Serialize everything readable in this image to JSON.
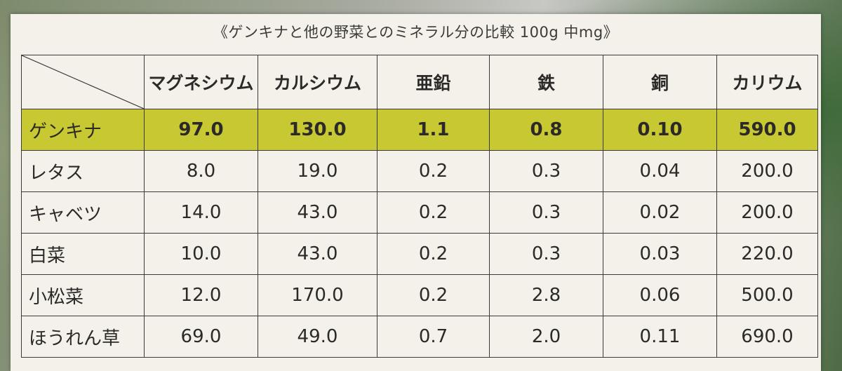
{
  "caption": "《ゲンキナと他の野菜とのミネラル分の比較 100g 中mg》",
  "headers": [
    "マグネシウム",
    "カルシウム",
    "亜鉛",
    "鉄",
    "銅",
    "カリウム"
  ],
  "highlight_color": "#c8c833",
  "rows": [
    {
      "name": "ゲンキナ",
      "values": [
        "97.0",
        "130.0",
        "1.1",
        "0.8",
        "0.10",
        "590.0"
      ]
    },
    {
      "name": "レタス",
      "values": [
        "8.0",
        "19.0",
        "0.2",
        "0.3",
        "0.04",
        "200.0"
      ]
    },
    {
      "name": "キャベツ",
      "values": [
        "14.0",
        "43.0",
        "0.2",
        "0.3",
        "0.02",
        "200.0"
      ]
    },
    {
      "name": "白菜",
      "values": [
        "10.0",
        "43.0",
        "0.2",
        "0.3",
        "0.03",
        "220.0"
      ]
    },
    {
      "name": "小松菜",
      "values": [
        "12.0",
        "170.0",
        "0.2",
        "2.8",
        "0.06",
        "500.0"
      ]
    },
    {
      "name": "ほうれん草",
      "values": [
        "69.0",
        "49.0",
        "0.7",
        "2.0",
        "0.11",
        "690.0"
      ]
    }
  ]
}
